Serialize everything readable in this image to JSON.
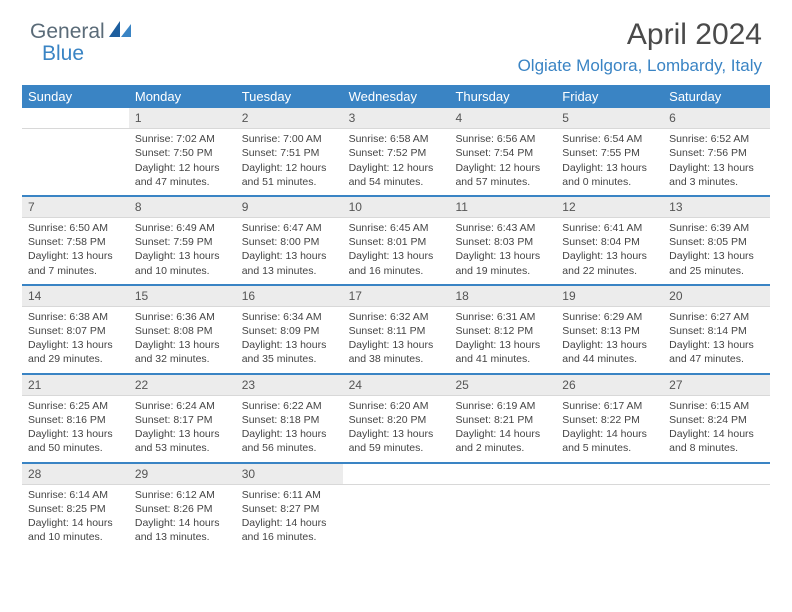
{
  "logo": {
    "text1": "General",
    "text2": "Blue"
  },
  "header": {
    "title": "April 2024",
    "location": "Olgiate Molgora, Lombardy, Italy"
  },
  "colors": {
    "brand_blue": "#3a84c4",
    "text_gray": "#444444",
    "header_gray": "#ececec"
  },
  "dayNames": [
    "Sunday",
    "Monday",
    "Tuesday",
    "Wednesday",
    "Thursday",
    "Friday",
    "Saturday"
  ],
  "weeks": [
    [
      {
        "n": "",
        "sr": "",
        "ss": "",
        "dl": ""
      },
      {
        "n": "1",
        "sr": "Sunrise: 7:02 AM",
        "ss": "Sunset: 7:50 PM",
        "dl": "Daylight: 12 hours and 47 minutes."
      },
      {
        "n": "2",
        "sr": "Sunrise: 7:00 AM",
        "ss": "Sunset: 7:51 PM",
        "dl": "Daylight: 12 hours and 51 minutes."
      },
      {
        "n": "3",
        "sr": "Sunrise: 6:58 AM",
        "ss": "Sunset: 7:52 PM",
        "dl": "Daylight: 12 hours and 54 minutes."
      },
      {
        "n": "4",
        "sr": "Sunrise: 6:56 AM",
        "ss": "Sunset: 7:54 PM",
        "dl": "Daylight: 12 hours and 57 minutes."
      },
      {
        "n": "5",
        "sr": "Sunrise: 6:54 AM",
        "ss": "Sunset: 7:55 PM",
        "dl": "Daylight: 13 hours and 0 minutes."
      },
      {
        "n": "6",
        "sr": "Sunrise: 6:52 AM",
        "ss": "Sunset: 7:56 PM",
        "dl": "Daylight: 13 hours and 3 minutes."
      }
    ],
    [
      {
        "n": "7",
        "sr": "Sunrise: 6:50 AM",
        "ss": "Sunset: 7:58 PM",
        "dl": "Daylight: 13 hours and 7 minutes."
      },
      {
        "n": "8",
        "sr": "Sunrise: 6:49 AM",
        "ss": "Sunset: 7:59 PM",
        "dl": "Daylight: 13 hours and 10 minutes."
      },
      {
        "n": "9",
        "sr": "Sunrise: 6:47 AM",
        "ss": "Sunset: 8:00 PM",
        "dl": "Daylight: 13 hours and 13 minutes."
      },
      {
        "n": "10",
        "sr": "Sunrise: 6:45 AM",
        "ss": "Sunset: 8:01 PM",
        "dl": "Daylight: 13 hours and 16 minutes."
      },
      {
        "n": "11",
        "sr": "Sunrise: 6:43 AM",
        "ss": "Sunset: 8:03 PM",
        "dl": "Daylight: 13 hours and 19 minutes."
      },
      {
        "n": "12",
        "sr": "Sunrise: 6:41 AM",
        "ss": "Sunset: 8:04 PM",
        "dl": "Daylight: 13 hours and 22 minutes."
      },
      {
        "n": "13",
        "sr": "Sunrise: 6:39 AM",
        "ss": "Sunset: 8:05 PM",
        "dl": "Daylight: 13 hours and 25 minutes."
      }
    ],
    [
      {
        "n": "14",
        "sr": "Sunrise: 6:38 AM",
        "ss": "Sunset: 8:07 PM",
        "dl": "Daylight: 13 hours and 29 minutes."
      },
      {
        "n": "15",
        "sr": "Sunrise: 6:36 AM",
        "ss": "Sunset: 8:08 PM",
        "dl": "Daylight: 13 hours and 32 minutes."
      },
      {
        "n": "16",
        "sr": "Sunrise: 6:34 AM",
        "ss": "Sunset: 8:09 PM",
        "dl": "Daylight: 13 hours and 35 minutes."
      },
      {
        "n": "17",
        "sr": "Sunrise: 6:32 AM",
        "ss": "Sunset: 8:11 PM",
        "dl": "Daylight: 13 hours and 38 minutes."
      },
      {
        "n": "18",
        "sr": "Sunrise: 6:31 AM",
        "ss": "Sunset: 8:12 PM",
        "dl": "Daylight: 13 hours and 41 minutes."
      },
      {
        "n": "19",
        "sr": "Sunrise: 6:29 AM",
        "ss": "Sunset: 8:13 PM",
        "dl": "Daylight: 13 hours and 44 minutes."
      },
      {
        "n": "20",
        "sr": "Sunrise: 6:27 AM",
        "ss": "Sunset: 8:14 PM",
        "dl": "Daylight: 13 hours and 47 minutes."
      }
    ],
    [
      {
        "n": "21",
        "sr": "Sunrise: 6:25 AM",
        "ss": "Sunset: 8:16 PM",
        "dl": "Daylight: 13 hours and 50 minutes."
      },
      {
        "n": "22",
        "sr": "Sunrise: 6:24 AM",
        "ss": "Sunset: 8:17 PM",
        "dl": "Daylight: 13 hours and 53 minutes."
      },
      {
        "n": "23",
        "sr": "Sunrise: 6:22 AM",
        "ss": "Sunset: 8:18 PM",
        "dl": "Daylight: 13 hours and 56 minutes."
      },
      {
        "n": "24",
        "sr": "Sunrise: 6:20 AM",
        "ss": "Sunset: 8:20 PM",
        "dl": "Daylight: 13 hours and 59 minutes."
      },
      {
        "n": "25",
        "sr": "Sunrise: 6:19 AM",
        "ss": "Sunset: 8:21 PM",
        "dl": "Daylight: 14 hours and 2 minutes."
      },
      {
        "n": "26",
        "sr": "Sunrise: 6:17 AM",
        "ss": "Sunset: 8:22 PM",
        "dl": "Daylight: 14 hours and 5 minutes."
      },
      {
        "n": "27",
        "sr": "Sunrise: 6:15 AM",
        "ss": "Sunset: 8:24 PM",
        "dl": "Daylight: 14 hours and 8 minutes."
      }
    ],
    [
      {
        "n": "28",
        "sr": "Sunrise: 6:14 AM",
        "ss": "Sunset: 8:25 PM",
        "dl": "Daylight: 14 hours and 10 minutes."
      },
      {
        "n": "29",
        "sr": "Sunrise: 6:12 AM",
        "ss": "Sunset: 8:26 PM",
        "dl": "Daylight: 14 hours and 13 minutes."
      },
      {
        "n": "30",
        "sr": "Sunrise: 6:11 AM",
        "ss": "Sunset: 8:27 PM",
        "dl": "Daylight: 14 hours and 16 minutes."
      },
      {
        "n": "",
        "sr": "",
        "ss": "",
        "dl": ""
      },
      {
        "n": "",
        "sr": "",
        "ss": "",
        "dl": ""
      },
      {
        "n": "",
        "sr": "",
        "ss": "",
        "dl": ""
      },
      {
        "n": "",
        "sr": "",
        "ss": "",
        "dl": ""
      }
    ]
  ]
}
